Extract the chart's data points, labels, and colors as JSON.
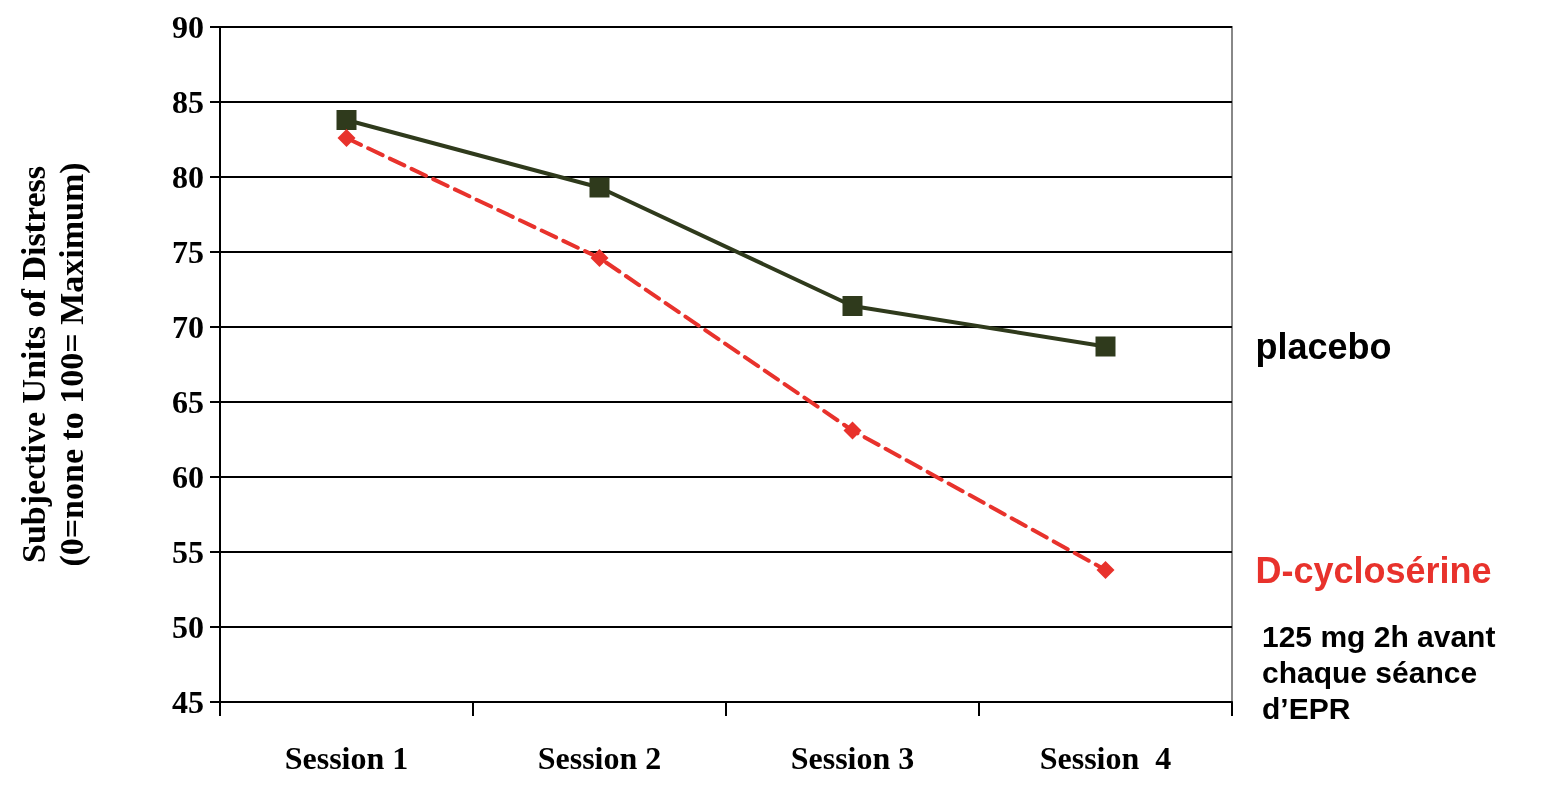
{
  "chart_data": {
    "type": "line",
    "ylabel": "Subjective Units of Distress\n(0=none to 100= Maximum)",
    "categories": [
      "Session 1",
      "Session 2",
      "Session 3",
      "Session  4"
    ],
    "series": [
      {
        "name": "placebo",
        "color": "#2f3a1c",
        "marker": "square",
        "line_style": "solid",
        "values": [
          83.8,
          79.3,
          71.4,
          68.7
        ]
      },
      {
        "name": "D-cyclosérine",
        "color": "#e8322c",
        "marker": "diamond",
        "line_style": "dashed",
        "values": [
          82.6,
          74.6,
          63.1,
          53.8
        ]
      }
    ],
    "ylim": [
      45,
      90
    ],
    "yticks": [
      45,
      50,
      55,
      60,
      65,
      70,
      75,
      80,
      85,
      90
    ],
    "grid": "y",
    "legend": false,
    "annotations": [
      "125 mg 2h avant chaque séance d’EPR"
    ]
  }
}
